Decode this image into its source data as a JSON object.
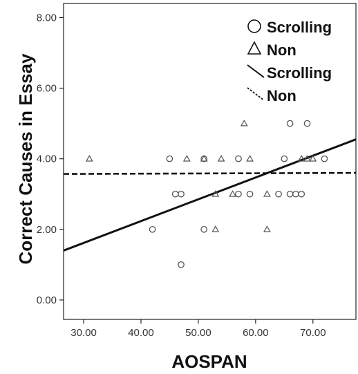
{
  "chart_data": {
    "type": "scatter",
    "xlabel": "AOSPAN",
    "ylabel": "Correct Causes in Essay",
    "xlim": [
      26.5,
      77.5
    ],
    "ylim": [
      -0.55,
      8.4
    ],
    "x_ticks": [
      30,
      40,
      50,
      60,
      70
    ],
    "x_tick_labels": [
      "30.00",
      "40.00",
      "50.00",
      "60.00",
      "70.00"
    ],
    "y_ticks": [
      0,
      2,
      4,
      6,
      8
    ],
    "y_tick_labels": [
      "0.00",
      "2.00",
      "4.00",
      "6.00",
      "8.00"
    ],
    "grid": false,
    "legend_position": "top-right",
    "colors": {
      "marker": "#555555",
      "line": "#111111",
      "axis": "#222222"
    },
    "series": [
      {
        "name": "Scrolling",
        "kind": "points",
        "marker": "circle",
        "points": [
          {
            "x": 42,
            "y": 2
          },
          {
            "x": 45,
            "y": 4
          },
          {
            "x": 46,
            "y": 3
          },
          {
            "x": 47,
            "y": 3
          },
          {
            "x": 47,
            "y": 1
          },
          {
            "x": 51,
            "y": 2
          },
          {
            "x": 51,
            "y": 4
          },
          {
            "x": 57,
            "y": 3
          },
          {
            "x": 57,
            "y": 4
          },
          {
            "x": 59,
            "y": 3
          },
          {
            "x": 64,
            "y": 3
          },
          {
            "x": 65,
            "y": 4
          },
          {
            "x": 66,
            "y": 3
          },
          {
            "x": 66,
            "y": 5
          },
          {
            "x": 67,
            "y": 3
          },
          {
            "x": 68,
            "y": 3
          },
          {
            "x": 69,
            "y": 5
          },
          {
            "x": 72,
            "y": 4
          }
        ]
      },
      {
        "name": "Non",
        "kind": "points",
        "marker": "triangle",
        "points": [
          {
            "x": 31,
            "y": 4
          },
          {
            "x": 48,
            "y": 4
          },
          {
            "x": 51,
            "y": 4
          },
          {
            "x": 53,
            "y": 3
          },
          {
            "x": 53,
            "y": 2
          },
          {
            "x": 54,
            "y": 4
          },
          {
            "x": 56,
            "y": 3
          },
          {
            "x": 58,
            "y": 5
          },
          {
            "x": 59,
            "y": 4
          },
          {
            "x": 62,
            "y": 3
          },
          {
            "x": 62,
            "y": 2
          },
          {
            "x": 68,
            "y": 4
          },
          {
            "x": 69,
            "y": 4
          },
          {
            "x": 70,
            "y": 4
          }
        ]
      },
      {
        "name": "Scrolling",
        "kind": "fit-line",
        "style": "solid",
        "points": [
          {
            "x": 26.5,
            "y": 1.4
          },
          {
            "x": 77.5,
            "y": 4.55
          }
        ]
      },
      {
        "name": "Non",
        "kind": "fit-line",
        "style": "dashed",
        "points": [
          {
            "x": 26.5,
            "y": 3.57
          },
          {
            "x": 77.5,
            "y": 3.6
          }
        ]
      }
    ],
    "legend": [
      {
        "label": "Scrolling",
        "symbol": "circle"
      },
      {
        "label": "Non",
        "symbol": "triangle"
      },
      {
        "label": "Scrolling",
        "symbol": "solid-line"
      },
      {
        "label": "Non",
        "symbol": "dashed-line"
      }
    ]
  }
}
